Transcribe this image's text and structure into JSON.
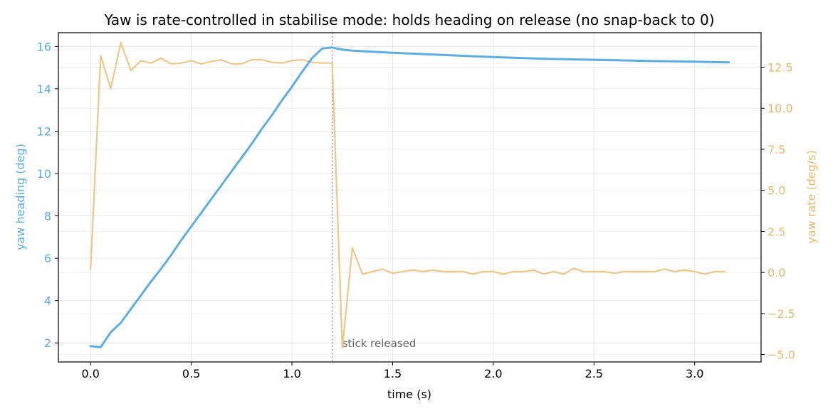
{
  "chart_data": {
    "type": "line",
    "title": "Yaw is rate-controlled in stabilise mode: holds heading on release (no snap-back to 0)",
    "xlabel": "time (s)",
    "ylabel_left": "yaw heading (deg)",
    "ylabel_right": "yaw rate (deg/s)",
    "xlim": [
      -0.16,
      3.33
    ],
    "ylim_left": [
      1.1,
      16.65
    ],
    "ylim_right": [
      -5.45,
      14.6
    ],
    "x_ticks": [
      0.0,
      0.5,
      1.0,
      1.5,
      2.0,
      2.5,
      3.0
    ],
    "x_tick_labels": [
      "0.0",
      "0.5",
      "1.0",
      "1.5",
      "2.0",
      "2.5",
      "3.0"
    ],
    "y_left_ticks": [
      2,
      4,
      6,
      8,
      10,
      12,
      14,
      16
    ],
    "y_left_tick_labels": [
      "2",
      "4",
      "6",
      "8",
      "10",
      "12",
      "14",
      "16"
    ],
    "y_right_ticks": [
      -5.0,
      -2.5,
      0.0,
      2.5,
      5.0,
      7.5,
      10.0,
      12.5
    ],
    "y_right_tick_labels": [
      "−5.0",
      "−2.5",
      "0.0",
      "2.5",
      "5.0",
      "7.5",
      "10.0",
      "12.5"
    ],
    "grid": true,
    "annotation": {
      "x": 1.2,
      "text": "stick released"
    },
    "colors": {
      "heading": "#5dade2",
      "rate": "#ebc88a",
      "left_axis": "#5dade2",
      "right_axis": "#e6b96e",
      "annotation": "#666666"
    },
    "series": [
      {
        "axis": "left",
        "x": [
          0.0,
          0.05,
          0.1,
          0.15,
          0.2,
          0.25,
          0.3,
          0.35,
          0.4,
          0.45,
          0.5,
          0.55,
          0.6,
          0.65,
          0.7,
          0.75,
          0.8,
          0.85,
          0.9,
          0.95,
          1.0,
          1.05,
          1.1,
          1.15,
          1.2,
          1.25,
          1.3,
          1.4,
          1.5,
          1.75,
          2.0,
          2.25,
          2.5,
          2.75,
          3.0,
          3.17
        ],
        "values": [
          1.85,
          1.8,
          2.5,
          2.95,
          3.6,
          4.25,
          4.9,
          5.5,
          6.15,
          6.85,
          7.5,
          8.15,
          8.8,
          9.45,
          10.1,
          10.75,
          11.4,
          12.1,
          12.75,
          13.45,
          14.1,
          14.8,
          15.45,
          15.9,
          15.95,
          15.85,
          15.8,
          15.75,
          15.7,
          15.6,
          15.5,
          15.42,
          15.37,
          15.32,
          15.28,
          15.25
        ]
      },
      {
        "axis": "right",
        "x": [
          0.0,
          0.05,
          0.1,
          0.15,
          0.2,
          0.25,
          0.3,
          0.35,
          0.4,
          0.45,
          0.5,
          0.55,
          0.6,
          0.65,
          0.7,
          0.75,
          0.8,
          0.85,
          0.9,
          0.95,
          1.0,
          1.05,
          1.1,
          1.15,
          1.2,
          1.25,
          1.3,
          1.35,
          1.4,
          1.45,
          1.5,
          1.55,
          1.6,
          1.65,
          1.7,
          1.75,
          1.8,
          1.85,
          1.9,
          1.95,
          2.0,
          2.05,
          2.1,
          2.15,
          2.2,
          2.25,
          2.3,
          2.35,
          2.4,
          2.45,
          2.5,
          2.55,
          2.6,
          2.65,
          2.7,
          2.75,
          2.8,
          2.85,
          2.9,
          2.95,
          3.0,
          3.05,
          3.1,
          3.15
        ],
        "values": [
          0.2,
          13.2,
          11.2,
          14.0,
          12.3,
          12.9,
          12.75,
          13.05,
          12.7,
          12.75,
          12.9,
          12.7,
          12.85,
          12.95,
          12.7,
          12.7,
          12.95,
          12.95,
          12.8,
          12.75,
          12.9,
          12.95,
          12.8,
          12.75,
          12.75,
          -4.6,
          1.5,
          -0.1,
          0.05,
          0.2,
          -0.05,
          0.05,
          0.15,
          0.05,
          0.15,
          0.05,
          0.05,
          0.05,
          -0.1,
          0.05,
          0.05,
          -0.1,
          0.05,
          0.05,
          0.15,
          -0.1,
          0.05,
          -0.1,
          0.25,
          0.05,
          0.05,
          0.05,
          -0.05,
          0.05,
          0.05,
          0.05,
          0.05,
          0.2,
          0.05,
          0.15,
          0.05,
          -0.1,
          0.05,
          0.05
        ]
      }
    ]
  }
}
